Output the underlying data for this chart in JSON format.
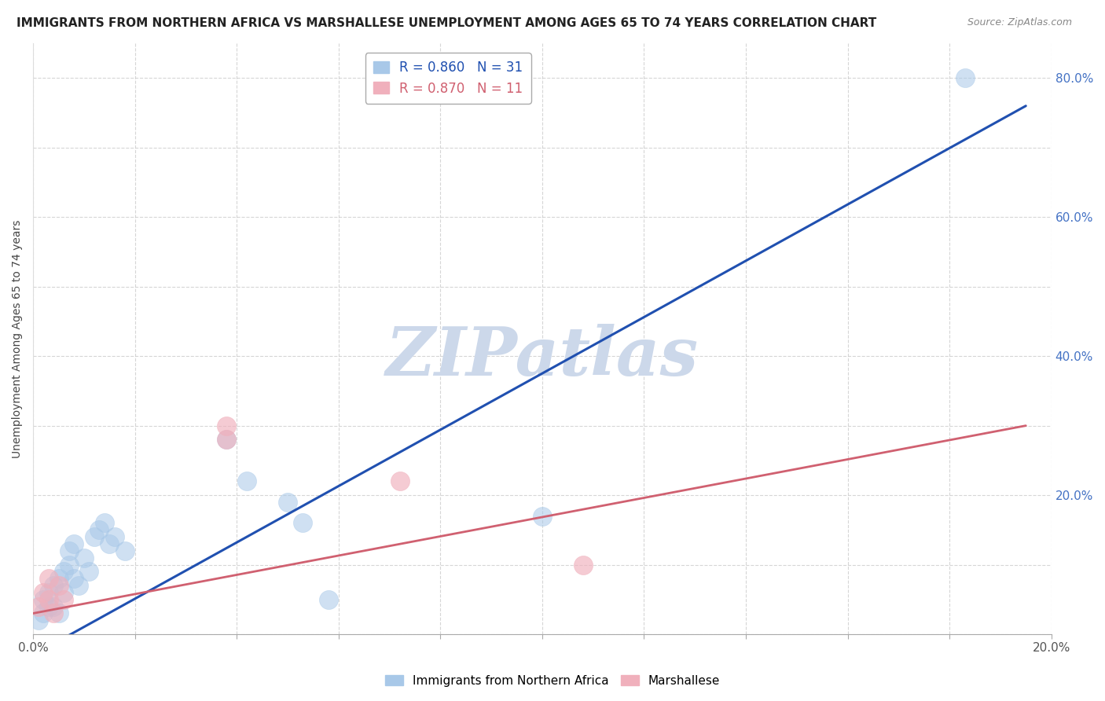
{
  "title": "IMMIGRANTS FROM NORTHERN AFRICA VS MARSHALLESE UNEMPLOYMENT AMONG AGES 65 TO 74 YEARS CORRELATION CHART",
  "source": "Source: ZipAtlas.com",
  "ylabel": "Unemployment Among Ages 65 to 74 years",
  "xlim": [
    0.0,
    0.2
  ],
  "ylim": [
    0.0,
    0.85
  ],
  "x_ticks": [
    0.0,
    0.02,
    0.04,
    0.06,
    0.08,
    0.1,
    0.12,
    0.14,
    0.16,
    0.18,
    0.2
  ],
  "y_ticks": [
    0.0,
    0.1,
    0.2,
    0.3,
    0.4,
    0.5,
    0.6,
    0.7,
    0.8
  ],
  "blue_R": 0.86,
  "blue_N": 31,
  "pink_R": 0.87,
  "pink_N": 11,
  "blue_color": "#a8c8e8",
  "pink_color": "#f0b0bc",
  "blue_line_color": "#2050b0",
  "pink_line_color": "#d06070",
  "watermark": "ZIPatlas",
  "watermark_color": "#ccd8ea",
  "background_color": "#ffffff",
  "grid_color": "#cccccc",
  "blue_scatter_x": [
    0.001,
    0.002,
    0.002,
    0.003,
    0.003,
    0.004,
    0.004,
    0.005,
    0.005,
    0.006,
    0.006,
    0.007,
    0.007,
    0.008,
    0.008,
    0.009,
    0.01,
    0.011,
    0.012,
    0.013,
    0.014,
    0.015,
    0.016,
    0.018,
    0.038,
    0.042,
    0.05,
    0.053,
    0.058,
    0.1,
    0.183
  ],
  "blue_scatter_y": [
    0.02,
    0.03,
    0.05,
    0.04,
    0.06,
    0.07,
    0.04,
    0.08,
    0.03,
    0.09,
    0.06,
    0.1,
    0.12,
    0.08,
    0.13,
    0.07,
    0.11,
    0.09,
    0.14,
    0.15,
    0.16,
    0.13,
    0.14,
    0.12,
    0.28,
    0.22,
    0.19,
    0.16,
    0.05,
    0.17,
    0.8
  ],
  "pink_scatter_x": [
    0.001,
    0.002,
    0.003,
    0.003,
    0.004,
    0.005,
    0.006,
    0.038,
    0.038,
    0.072,
    0.108
  ],
  "pink_scatter_y": [
    0.04,
    0.06,
    0.05,
    0.08,
    0.03,
    0.07,
    0.05,
    0.28,
    0.3,
    0.22,
    0.1
  ],
  "blue_line_x": [
    0.0,
    0.195
  ],
  "blue_line_y": [
    -0.03,
    0.76
  ],
  "pink_line_x": [
    0.0,
    0.195
  ],
  "pink_line_y": [
    0.03,
    0.3
  ],
  "legend_fontsize": 12,
  "title_fontsize": 11,
  "axis_label_fontsize": 10,
  "tick_fontsize": 11,
  "right_tick_color": "#4472c4"
}
